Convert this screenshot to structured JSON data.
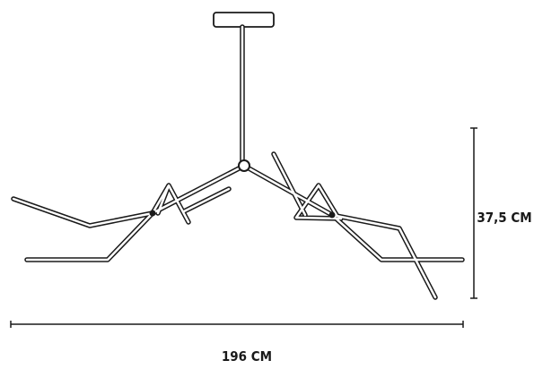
{
  "dimensions": {
    "height": "37,5 CM",
    "width": "196 CM"
  }
}
